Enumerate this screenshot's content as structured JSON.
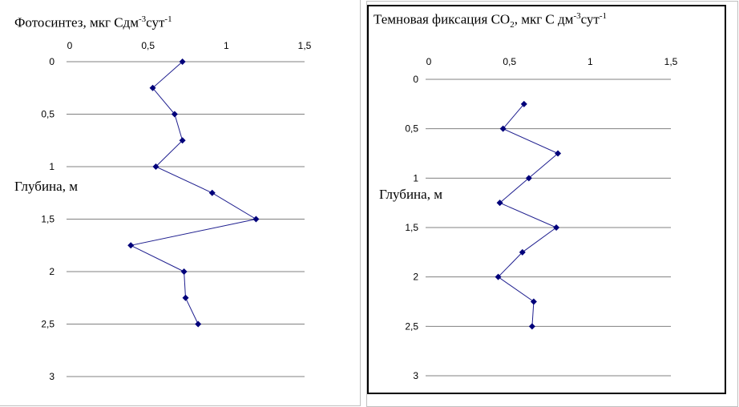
{
  "chart_data": [
    {
      "type": "line",
      "title_parts": [
        "Фотосинтез, мкг Сдм",
        "-3",
        "сут",
        "-1"
      ],
      "ylabel": "Глубина, м",
      "xlim": [
        0,
        1.5
      ],
      "ylim": [
        0,
        3
      ],
      "y_inverted": true,
      "x_ticks": [
        "0",
        "0,5",
        "1",
        "1,5"
      ],
      "y_ticks": [
        "0",
        "0,5",
        "1",
        "1,5",
        "2",
        "2,5",
        "3"
      ],
      "x_axis_position": "top",
      "grid": "horizontal",
      "series_color": "#1f1f8f",
      "marker": "diamond",
      "points": [
        {
          "x": 0.72,
          "y": 0
        },
        {
          "x": 0.53,
          "y": 0.25
        },
        {
          "x": 0.67,
          "y": 0.5
        },
        {
          "x": 0.72,
          "y": 0.75
        },
        {
          "x": 0.55,
          "y": 1.0
        },
        {
          "x": 0.91,
          "y": 1.25
        },
        {
          "x": 1.19,
          "y": 1.5
        },
        {
          "x": 0.39,
          "y": 1.75
        },
        {
          "x": 0.73,
          "y": 2.0
        },
        {
          "x": 0.74,
          "y": 2.25
        },
        {
          "x": 0.82,
          "y": 2.5
        }
      ]
    },
    {
      "type": "line",
      "title_parts": [
        "Темновая фиксация СО",
        "2",
        ", мкг С дм",
        "-3",
        "сут",
        "-1"
      ],
      "ylabel": "Глубина, м",
      "xlim": [
        0,
        1.5
      ],
      "ylim": [
        0,
        3
      ],
      "y_inverted": true,
      "x_ticks": [
        "0",
        "0,5",
        "1",
        "1,5"
      ],
      "y_ticks": [
        "0",
        "0,5",
        "1",
        "1,5",
        "2",
        "2,5",
        "3"
      ],
      "x_axis_position": "top",
      "grid": "horizontal",
      "series_color": "#1f1f8f",
      "marker": "diamond",
      "points": [
        {
          "x": 0.59,
          "y": 0.25
        },
        {
          "x": 0.46,
          "y": 0.5
        },
        {
          "x": 0.8,
          "y": 0.75
        },
        {
          "x": 0.62,
          "y": 1.0
        },
        {
          "x": 0.44,
          "y": 1.25
        },
        {
          "x": 0.79,
          "y": 1.5
        },
        {
          "x": 0.58,
          "y": 1.75
        },
        {
          "x": 0.43,
          "y": 2.0
        },
        {
          "x": 0.65,
          "y": 2.25
        },
        {
          "x": 0.64,
          "y": 2.5
        }
      ]
    }
  ]
}
